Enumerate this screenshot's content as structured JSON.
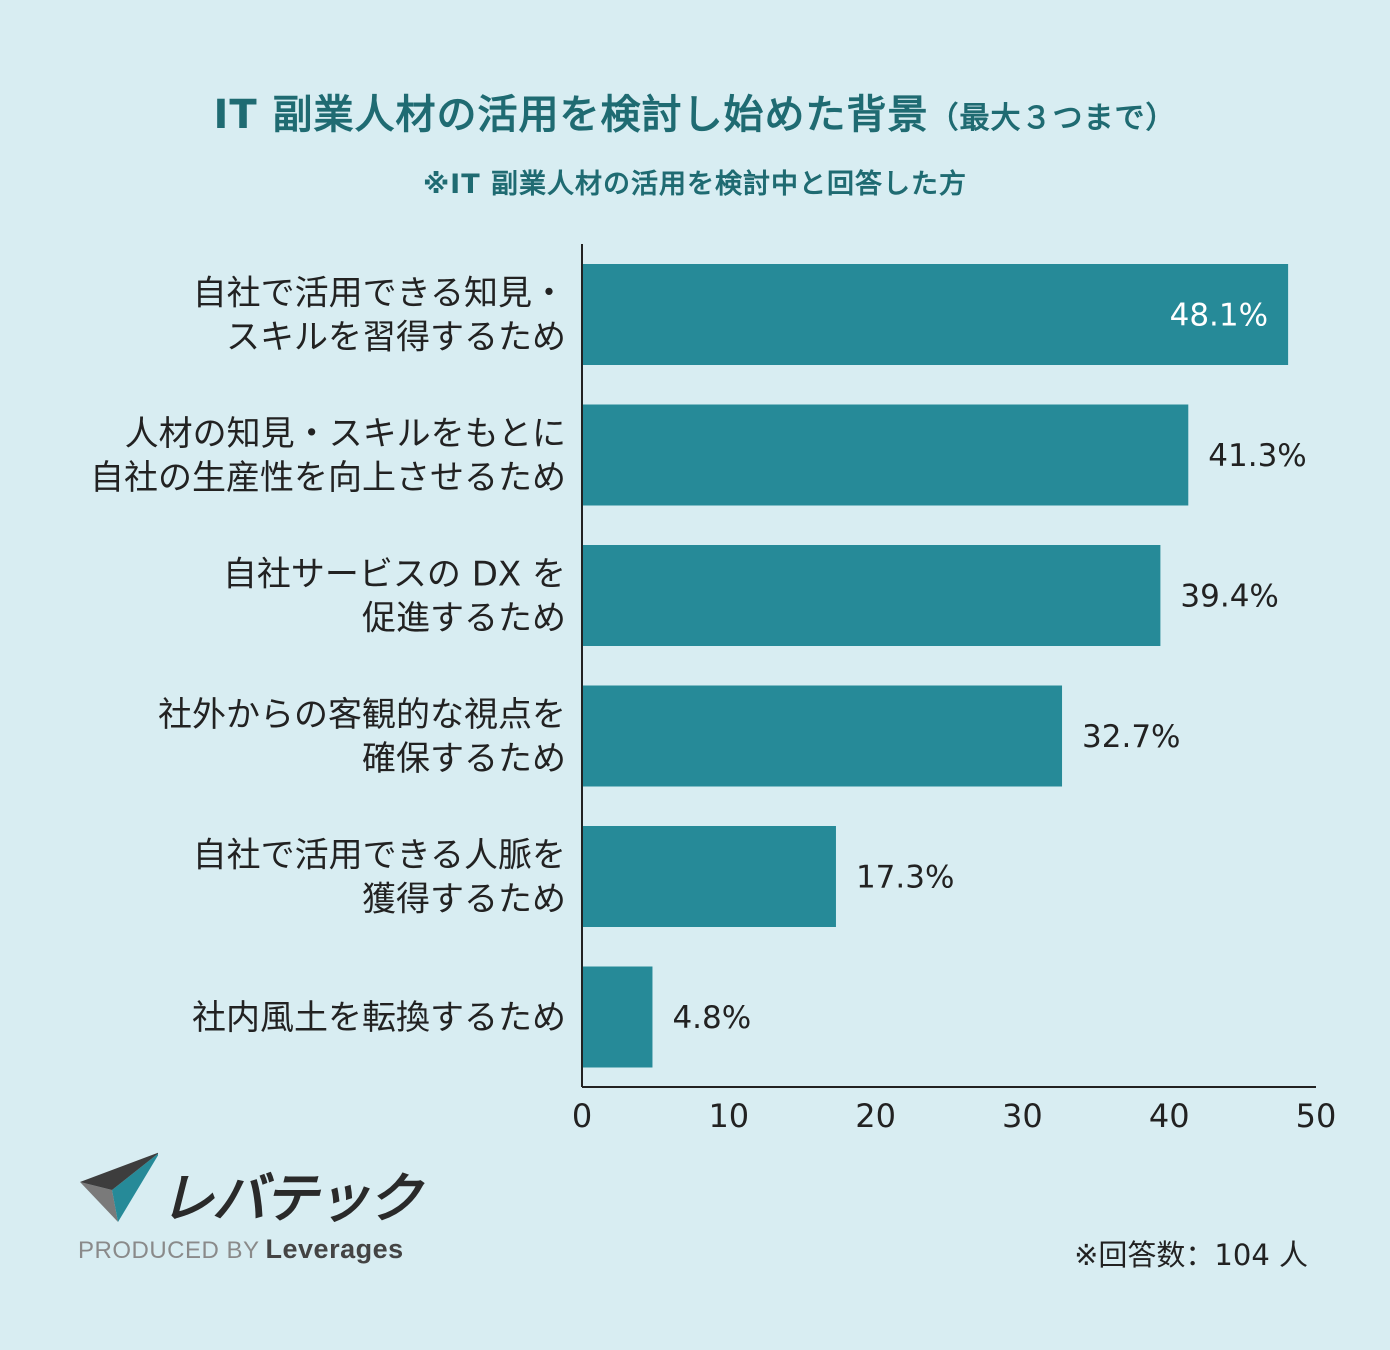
{
  "header": {
    "title": "IT 副業人材の活用を検討し始めた背景",
    "title_suffix": "（最大３つまで）",
    "subtitle": "※IT 副業人材の活用を検討中と回答した方"
  },
  "chart_data": {
    "type": "bar",
    "orientation": "horizontal",
    "categories": [
      [
        "自社で活用できる知見・",
        "スキルを習得するため"
      ],
      [
        "人材の知見・スキルをもとに",
        "自社の生産性を向上させるため"
      ],
      [
        "自社サービスの DX を",
        "促進するため"
      ],
      [
        "社外からの客観的な視点を",
        "確保するため"
      ],
      [
        "自社で活用できる人脈を",
        "獲得するため"
      ],
      [
        "社内風土を転換するため"
      ]
    ],
    "values": [
      48.1,
      41.3,
      39.4,
      32.7,
      17.3,
      4.8
    ],
    "value_labels": [
      "48.1%",
      "41.3%",
      "39.4%",
      "32.7%",
      "17.3%",
      "4.8%"
    ],
    "xlim": [
      0,
      50
    ],
    "xticks": [
      0,
      10,
      20,
      30,
      40,
      50
    ],
    "bar_color": "#268a98",
    "grid": false
  },
  "logo": {
    "text": "レバテック",
    "produced_by": "PRODUCED BY",
    "brand": "Leverages"
  },
  "footnote": "※回答数：104 人",
  "colors": {
    "background": "#d8edf2",
    "title": "#1f6b72",
    "bar": "#268a98",
    "text": "#222222"
  }
}
